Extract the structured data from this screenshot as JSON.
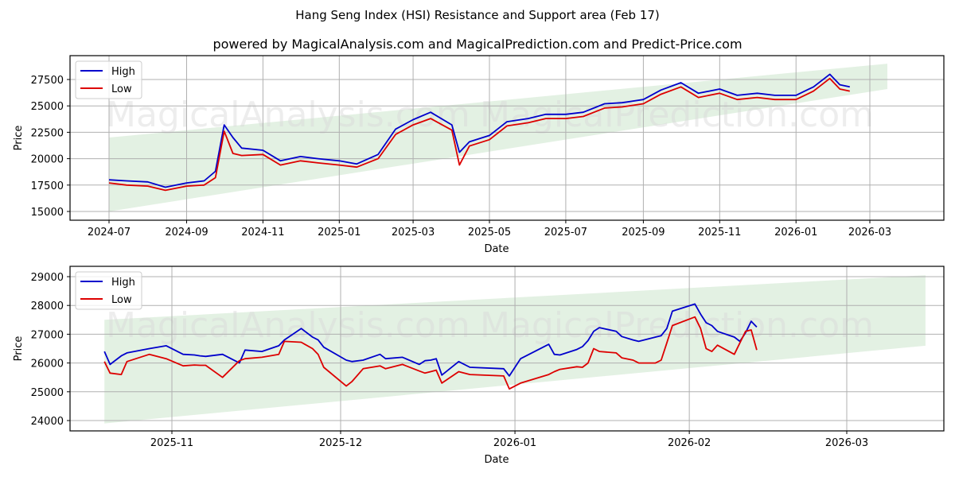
{
  "title": "Hang Seng Index (HSI) Resistance and Support area (Feb 17)",
  "subtitle": "powered by MagicalAnalysis.com and MagicalPrediction.com and Predict-Price.com",
  "watermarks": [
    "MagicalAnalysis.com",
    "MagicalPrediction.com"
  ],
  "colors": {
    "high": "#0000cc",
    "low": "#dd0000",
    "band": "#d9ecd9",
    "grid": "#b0b0b0"
  },
  "chart_data": [
    {
      "type": "line",
      "title": "",
      "xlabel": "Date",
      "ylabel": "Price",
      "ylim": [
        14200,
        29600
      ],
      "grid": true,
      "legend_position": "upper left",
      "legend": [
        "High",
        "Low"
      ],
      "x_ticks": [
        "2024-07",
        "2024-09",
        "2024-11",
        "2025-01",
        "2025-03",
        "2025-05",
        "2025-07",
        "2025-09",
        "2025-11",
        "2026-01",
        "2026-03"
      ],
      "y_ticks": [
        "15000",
        "17500",
        "20000",
        "22500",
        "25000",
        "27500"
      ],
      "x": [
        "2024-07-01",
        "2024-07-15",
        "2024-08-01",
        "2024-08-15",
        "2024-09-01",
        "2024-09-15",
        "2024-09-24",
        "2024-10-01",
        "2024-10-08",
        "2024-10-15",
        "2024-11-01",
        "2024-11-15",
        "2024-12-01",
        "2024-12-15",
        "2025-01-01",
        "2025-01-15",
        "2025-02-01",
        "2025-02-15",
        "2025-03-01",
        "2025-03-15",
        "2025-04-01",
        "2025-04-07",
        "2025-04-15",
        "2025-05-01",
        "2025-05-15",
        "2025-06-01",
        "2025-06-15",
        "2025-07-01",
        "2025-07-15",
        "2025-08-01",
        "2025-08-15",
        "2025-09-01",
        "2025-09-15",
        "2025-10-01",
        "2025-10-15",
        "2025-11-01",
        "2025-11-15",
        "2025-12-01",
        "2025-12-15",
        "2026-01-01",
        "2026-01-15",
        "2026-01-28",
        "2026-02-05",
        "2026-02-13"
      ],
      "series": [
        {
          "name": "High",
          "values": [
            18000,
            17900,
            17800,
            17300,
            17700,
            17900,
            18800,
            23200,
            22000,
            21000,
            20800,
            19800,
            20200,
            20000,
            19800,
            19500,
            20400,
            22800,
            23700,
            24400,
            23200,
            20600,
            21600,
            22200,
            23500,
            23800,
            24200,
            24200,
            24400,
            25200,
            25300,
            25600,
            26500,
            27200,
            26200,
            26600,
            26000,
            26200,
            26000,
            26000,
            26800,
            28000,
            27000,
            26800
          ]
        },
        {
          "name": "Low",
          "values": [
            17700,
            17500,
            17400,
            17000,
            17400,
            17500,
            18200,
            22600,
            20500,
            20300,
            20400,
            19400,
            19800,
            19600,
            19400,
            19200,
            20000,
            22300,
            23200,
            23800,
            22700,
            19400,
            21200,
            21800,
            23100,
            23400,
            23800,
            23800,
            24000,
            24800,
            24900,
            25200,
            26100,
            26800,
            25800,
            26200,
            25600,
            25800,
            25600,
            25600,
            26400,
            27600,
            26600,
            26400
          ]
        }
      ],
      "band": {
        "start": "2024-07-01",
        "end": "2026-03-15",
        "upper": [
          22000,
          29000
        ],
        "lower": [
          15000,
          26600
        ]
      }
    },
    {
      "type": "line",
      "title": "",
      "xlabel": "Date",
      "ylabel": "Price",
      "ylim": [
        23650,
        29350
      ],
      "grid": true,
      "legend_position": "upper left",
      "legend": [
        "High",
        "Low"
      ],
      "x_ticks": [
        "2025-11",
        "2025-12",
        "2026-01",
        "2026-02",
        "2026-03"
      ],
      "y_ticks": [
        "24000",
        "25000",
        "26000",
        "27000",
        "28000",
        "29000"
      ],
      "x": [
        "2025-10-20",
        "2025-10-21",
        "2025-10-23",
        "2025-10-24",
        "2025-10-28",
        "2025-10-31",
        "2025-11-03",
        "2025-11-05",
        "2025-11-06",
        "2025-11-07",
        "2025-11-10",
        "2025-11-13",
        "2025-11-14",
        "2025-11-17",
        "2025-11-20",
        "2025-11-21",
        "2025-11-24",
        "2025-11-26",
        "2025-11-27",
        "2025-11-28",
        "2025-12-02",
        "2025-12-03",
        "2025-12-05",
        "2025-12-08",
        "2025-12-09",
        "2025-12-12",
        "2025-12-15",
        "2025-12-16",
        "2025-12-17",
        "2025-12-18",
        "2025-12-19",
        "2025-12-22",
        "2025-12-24",
        "2025-12-30",
        "2025-12-31",
        "2026-01-02",
        "2026-01-07",
        "2026-01-08",
        "2026-01-09",
        "2026-01-12",
        "2026-01-13",
        "2026-01-14",
        "2026-01-15",
        "2026-01-16",
        "2026-01-19",
        "2026-01-20",
        "2026-01-22",
        "2026-01-23",
        "2026-01-26",
        "2026-01-27",
        "2026-01-28",
        "2026-01-29",
        "2026-02-02",
        "2026-02-03",
        "2026-02-04",
        "2026-02-05",
        "2026-02-06",
        "2026-02-09",
        "2026-02-10",
        "2026-02-11",
        "2026-02-12",
        "2026-02-13"
      ],
      "series": [
        {
          "name": "High",
          "values": [
            26400,
            25950,
            26250,
            26350,
            26500,
            26600,
            26300,
            26280,
            26250,
            26230,
            26300,
            26000,
            26450,
            26400,
            26600,
            26800,
            27200,
            26900,
            26800,
            26550,
            26100,
            26050,
            26100,
            26300,
            26150,
            26200,
            25950,
            26080,
            26100,
            26150,
            25580,
            26050,
            25850,
            25800,
            25550,
            26150,
            26650,
            26300,
            26280,
            26470,
            26570,
            26780,
            27100,
            27230,
            27100,
            26920,
            26800,
            26750,
            26900,
            26950,
            27200,
            27800,
            28050,
            27700,
            27400,
            27300,
            27100,
            26900,
            26750,
            27050,
            27450,
            27250
          ]
        },
        {
          "name": "Low",
          "values": [
            26050,
            25650,
            25600,
            26050,
            26300,
            26150,
            25900,
            25930,
            25920,
            25920,
            25500,
            26080,
            26150,
            26200,
            26300,
            26750,
            26720,
            26500,
            26300,
            25850,
            25200,
            25350,
            25800,
            25900,
            25800,
            25950,
            25720,
            25650,
            25700,
            25750,
            25300,
            25700,
            25600,
            25550,
            25100,
            25300,
            25600,
            25700,
            25780,
            25870,
            25850,
            26000,
            26500,
            26400,
            26350,
            26180,
            26100,
            26000,
            26000,
            26100,
            26700,
            27300,
            27600,
            27200,
            26500,
            26400,
            26620,
            26300,
            26700,
            27100,
            27150,
            26450
          ]
        }
      ],
      "band": {
        "start": "2025-10-20",
        "end": "2026-03-15",
        "upper": [
          27500,
          29050
        ],
        "lower": [
          23900,
          26600
        ]
      }
    }
  ]
}
